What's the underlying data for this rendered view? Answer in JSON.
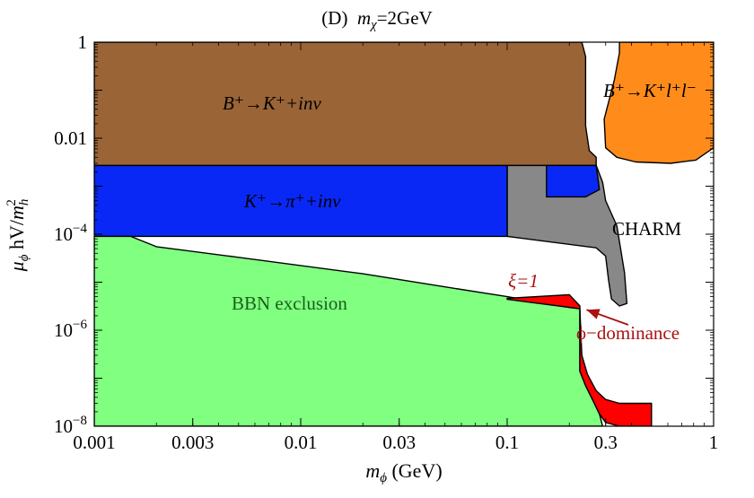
{
  "chart_data": {
    "type": "area",
    "title": "(D)  m_χ=2GeV",
    "title_parts": {
      "prefix": "(D)",
      "symbol": "m",
      "subscript": "χ",
      "value": "=2GeV"
    },
    "xlabel": "m_ϕ (GeV)",
    "xlabel_parts": {
      "symbol": "m",
      "subscript": "ϕ",
      "unit": " (GeV)"
    },
    "ylabel": "μ_ϕ hV/m_h^2",
    "ylabel_parts": {
      "symbol": "μ",
      "subscript": "ϕ",
      "middle": " hV/",
      "den": "m",
      "den_sub": "h",
      "den_sup": "2"
    },
    "x_scale": "log",
    "y_scale": "log",
    "xlim": [
      0.001,
      1
    ],
    "ylim": [
      1e-08,
      1
    ],
    "x_ticks": [
      {
        "value": 0.001,
        "label": "0.001"
      },
      {
        "value": 0.003,
        "label": "0.003"
      },
      {
        "value": 0.01,
        "label": "0.01"
      },
      {
        "value": 0.03,
        "label": "0.03"
      },
      {
        "value": 0.1,
        "label": "0.1"
      },
      {
        "value": 0.3,
        "label": "0.3"
      },
      {
        "value": 1,
        "label": "1"
      }
    ],
    "y_ticks": [
      {
        "value": 1,
        "base": "1",
        "exp": ""
      },
      {
        "value": 0.01,
        "base": "0.01",
        "exp": ""
      },
      {
        "value": 0.0001,
        "base": "10",
        "exp": "−4"
      },
      {
        "value": 1e-06,
        "base": "10",
        "exp": "−6"
      },
      {
        "value": 1e-08,
        "base": "10",
        "exp": "−8"
      }
    ],
    "grid": false,
    "regions": [
      {
        "name": "B+→K+ l+ l−",
        "color": "#FF8C1A",
        "points": [
          [
            0.35,
            1
          ],
          [
            1,
            1
          ],
          [
            1,
            0.0063
          ],
          [
            0.82,
            0.0035
          ],
          [
            0.62,
            0.003
          ],
          [
            0.42,
            0.0032
          ],
          [
            0.34,
            0.004
          ],
          [
            0.3,
            0.0063
          ],
          [
            0.295,
            0.025
          ],
          [
            0.33,
            0.16
          ],
          [
            0.35,
            0.6
          ]
        ]
      },
      {
        "name": "B+→K+ +inv",
        "color": "#9A6437",
        "points": [
          [
            0.001,
            1
          ],
          [
            0.23,
            1
          ],
          [
            0.24,
            0.5
          ],
          [
            0.24,
            0.018
          ],
          [
            0.25,
            0.0055
          ],
          [
            0.27,
            0.004
          ],
          [
            0.27,
            0.0027
          ],
          [
            0.001,
            0.0027
          ]
        ]
      },
      {
        "name": "CHARM",
        "color": "#888888",
        "points": [
          [
            0.1,
            0.0027
          ],
          [
            0.27,
            0.0027
          ],
          [
            0.29,
            0.0012
          ],
          [
            0.3,
            0.0005
          ],
          [
            0.34,
            0.00015
          ],
          [
            0.37,
            1.6e-05
          ],
          [
            0.38,
            3.6e-06
          ],
          [
            0.35,
            3.2e-06
          ],
          [
            0.32,
            4.5e-06
          ],
          [
            0.31,
            1.1e-05
          ],
          [
            0.3,
            3.5e-05
          ],
          [
            0.27,
            5.2e-05
          ],
          [
            0.1,
            9e-05
          ]
        ]
      },
      {
        "name": "K+→π+ +inv",
        "color": "#0A28F5",
        "points": [
          [
            0.001,
            0.0027
          ],
          [
            0.1,
            0.0027
          ],
          [
            0.1,
            9e-05
          ],
          [
            0.001,
            9e-05
          ]
        ]
      },
      {
        "name": "K+→π+ +inv (upper patch)",
        "color": "#0A28F5",
        "points": [
          [
            0.155,
            0.0027
          ],
          [
            0.27,
            0.0027
          ],
          [
            0.28,
            0.00085
          ],
          [
            0.24,
            0.0006
          ],
          [
            0.155,
            0.0006
          ]
        ]
      },
      {
        "name": "BBN exclusion",
        "color": "#80FF80",
        "points": [
          [
            0.001,
            9e-05
          ],
          [
            0.0015,
            9e-05
          ],
          [
            0.002,
            5.5e-05
          ],
          [
            0.005,
            3.3e-05
          ],
          [
            0.02,
            1.5e-05
          ],
          [
            0.05,
            8e-06
          ],
          [
            0.1,
            5e-06
          ],
          [
            0.2,
            3e-06
          ],
          [
            0.225,
            2.8e-06
          ],
          [
            0.225,
            1.4e-07
          ],
          [
            0.24,
            7e-08
          ],
          [
            0.26,
            3.5e-08
          ],
          [
            0.28,
            1.8e-08
          ],
          [
            0.29,
            1e-08
          ],
          [
            0.001,
            1e-08
          ]
        ]
      },
      {
        "name": "ξ=1",
        "color": "#FF0000",
        "points": [
          [
            0.1,
            4.6e-06
          ],
          [
            0.2,
            5.5e-06
          ],
          [
            0.225,
            3.2e-06
          ],
          [
            0.225,
            2.8e-06
          ],
          [
            0.2,
            3e-06
          ],
          [
            0.1,
            4.4e-06
          ]
        ]
      },
      {
        "name": "ϕ−dominance",
        "color": "#FF0000",
        "points": [
          [
            0.225,
            1.4e-07
          ],
          [
            0.24,
            7e-08
          ],
          [
            0.26,
            3.5e-08
          ],
          [
            0.28,
            1.8e-08
          ],
          [
            0.3,
            1.2e-08
          ],
          [
            0.35,
            1e-08
          ],
          [
            0.5,
            1e-08
          ],
          [
            0.5,
            3e-08
          ],
          [
            0.35,
            3e-08
          ],
          [
            0.3,
            3.6e-08
          ],
          [
            0.27,
            5.5e-08
          ],
          [
            0.245,
            1.2e-07
          ],
          [
            0.23,
            3e-07
          ],
          [
            0.225,
            2.8e-06
          ]
        ]
      }
    ],
    "labels": [
      {
        "text": "B⁺→K⁺+inv",
        "x": 0.005,
        "y": 0.07,
        "color": "#000000",
        "style": "math"
      },
      {
        "text": "B⁺→K⁺l⁺l⁻",
        "x": 0.6,
        "y": 0.08,
        "color": "#000000",
        "style": "math"
      },
      {
        "text": "K⁺→π⁺+inv",
        "x": 0.005,
        "y": 0.0004,
        "color": "#000000",
        "style": "math"
      },
      {
        "text": "CHARM",
        "x": 0.54,
        "y": 9e-05,
        "color": "#000000",
        "style": "plain"
      },
      {
        "text": "BBN exclusion",
        "x": 0.0055,
        "y": 9e-06,
        "color": "#1a5e1a",
        "style": "plain"
      },
      {
        "text": "ξ=1",
        "x": 0.15,
        "y": 9.5e-06,
        "color": "#aa1111",
        "style": "math"
      },
      {
        "text": "ϕ−dominance",
        "x": 0.45,
        "y": 6e-07,
        "color": "#aa1111",
        "style": "plain"
      }
    ],
    "annotations": [
      {
        "type": "arrow",
        "label": "ϕ−dominance",
        "from": [
          0.38,
          1.1e-06
        ],
        "to": [
          0.233,
          2.9e-06
        ],
        "color": "#aa1111"
      }
    ]
  }
}
